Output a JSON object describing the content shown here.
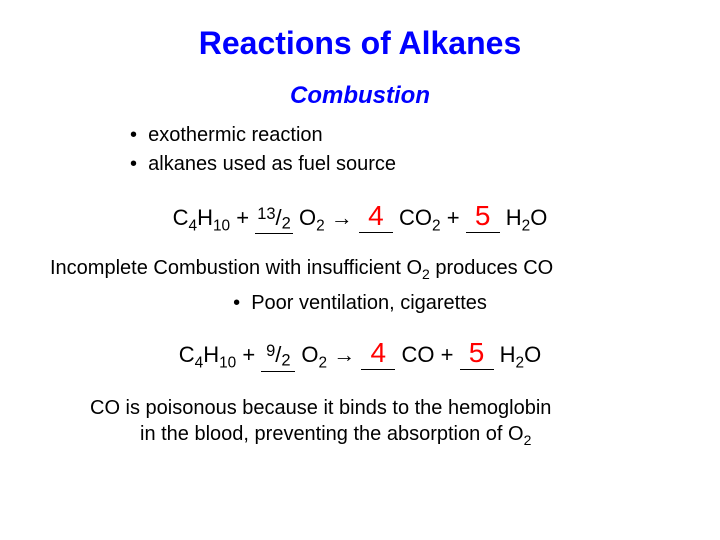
{
  "colors": {
    "title": "#0000ff",
    "subtitle": "#0000ff",
    "answer": "#ff0000",
    "text": "#000000",
    "background": "#ffffff"
  },
  "fonts": {
    "title_size": 32,
    "subtitle_size": 24,
    "body_size": 20,
    "equation_size": 22,
    "answer_size": 28
  },
  "title": "Reactions of Alkanes",
  "subtitle": "Combustion",
  "bullets": [
    "exothermic reaction",
    "alkanes used as fuel source"
  ],
  "eq1": {
    "reactant": "C4H10",
    "coef_o2": "13/2",
    "product1": "CO2",
    "coef_product1": "4",
    "product2": "H2O",
    "coef_product2": "5"
  },
  "incomplete_heading": "Incomplete Combustion with insufficient O",
  "incomplete_heading_tail": " produces CO",
  "bullets2": [
    "Poor ventilation, cigarettes"
  ],
  "eq2": {
    "reactant": "C4H10",
    "coef_o2": "9/2",
    "product1": "CO",
    "coef_product1": "4",
    "product2": "H2O",
    "coef_product2": "5"
  },
  "footer_line1": "CO is poisonous because it binds to the hemoglobin",
  "footer_line2": "in the blood, preventing the absorption of O"
}
